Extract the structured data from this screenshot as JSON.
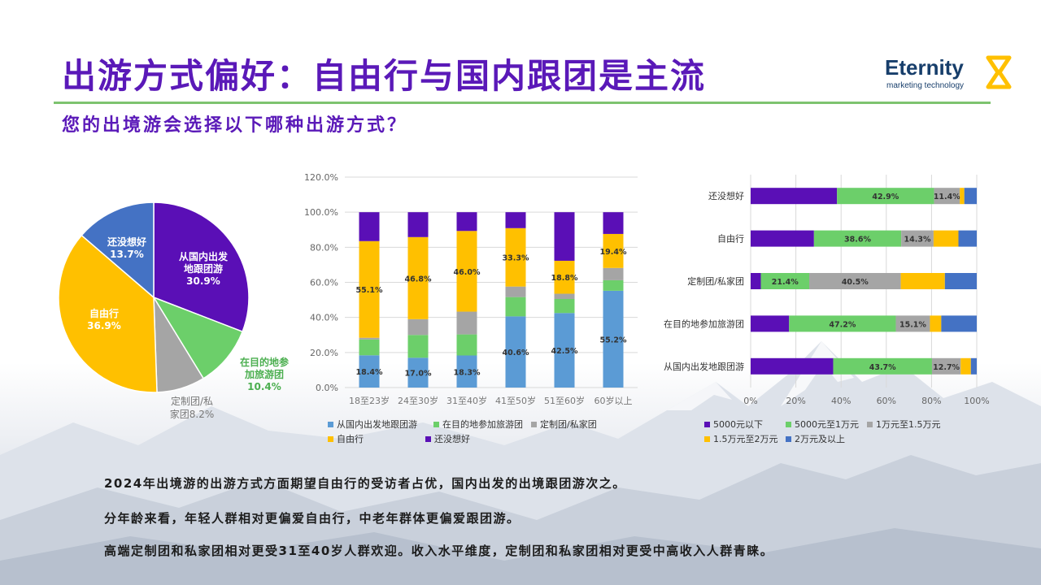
{
  "title": "出游方式偏好：自由行与国内跟团是主流",
  "subtitle": "您的出境游会选择以下哪种出游方式？",
  "logo": {
    "name": "Eternity",
    "tagline": "marketing technology"
  },
  "colors": {
    "blue": "#5b9bd5",
    "green": "#6ccf6a",
    "gray": "#a5a5a5",
    "yellow": "#ffc000",
    "purple": "#5a0fb6",
    "blue2": "#4472c4"
  },
  "chart_data": [
    {
      "type": "pie",
      "slices": [
        {
          "label": "从国内出发地跟团游",
          "value": 30.9,
          "value_label": "30.9%",
          "color": "#5a0fb6"
        },
        {
          "label": "在目的地参加旅游团",
          "value": 10.4,
          "value_label": "10.4%",
          "color": "#6ccf6a"
        },
        {
          "label": "定制团/私家团",
          "value": 8.2,
          "value_label": "8.2%",
          "color": "#a5a5a5"
        },
        {
          "label": "自由行",
          "value": 36.9,
          "value_label": "36.9%",
          "color": "#ffc000"
        },
        {
          "label": "还没想好",
          "value": 13.7,
          "value_label": "13.7%",
          "color": "#4472c4"
        }
      ]
    },
    {
      "type": "bar",
      "stacked": true,
      "categories": [
        "18至23岁",
        "24至30岁",
        "31至40岁",
        "41至50岁",
        "51至60岁",
        "60岁以上"
      ],
      "yticks": [
        "0.0%",
        "20.0%",
        "40.0%",
        "60.0%",
        "80.0%",
        "100.0%",
        "120.0%"
      ],
      "ylim": [
        0,
        120
      ],
      "grid": true,
      "legend_position": "bottom",
      "series": [
        {
          "name": "从国内出发地跟团游",
          "color": "#5b9bd5",
          "values": [
            18.4,
            17.0,
            18.3,
            40.6,
            42.5,
            55.2
          ],
          "labels": [
            "18.4%",
            "17.0%",
            "18.3%",
            "40.6%",
            "42.5%",
            "55.2%"
          ]
        },
        {
          "name": "在目的地参加旅游团",
          "color": "#6ccf6a",
          "values": [
            9.0,
            13.0,
            12.0,
            11.0,
            8.0,
            6.0
          ],
          "labels": [
            "",
            "",
            "",
            "",
            "",
            ""
          ]
        },
        {
          "name": "定制团/私家团",
          "color": "#a5a5a5",
          "values": [
            1.0,
            9.0,
            13.0,
            6.0,
            3.0,
            7.0
          ],
          "labels": [
            "",
            "",
            "",
            "",
            "",
            ""
          ]
        },
        {
          "name": "自由行",
          "color": "#ffc000",
          "values": [
            55.1,
            46.8,
            46.0,
            33.3,
            18.8,
            19.4
          ],
          "labels": [
            "55.1%",
            "46.8%",
            "46.0%",
            "33.3%",
            "18.8%",
            "19.4%"
          ]
        },
        {
          "name": "还没想好",
          "color": "#5a0fb6",
          "values": [
            16.5,
            14.2,
            10.7,
            9.1,
            27.7,
            12.4
          ],
          "labels": [
            "",
            "",
            "",
            "",
            "",
            ""
          ]
        }
      ]
    },
    {
      "type": "bar",
      "orientation": "horizontal",
      "stacked": true,
      "percent": true,
      "categories": [
        "还没想好",
        "自由行",
        "定制团/私家团",
        "在目的地参加旅游团",
        "从国内出发地跟团游"
      ],
      "xticks": [
        "0%",
        "20%",
        "40%",
        "60%",
        "80%",
        "100%"
      ],
      "xlim": [
        0,
        100
      ],
      "grid": true,
      "legend_position": "bottom",
      "series": [
        {
          "name": "5000元以下",
          "color": "#5a0fb6",
          "values": [
            38.2,
            28.0,
            4.5,
            17.0,
            36.5
          ],
          "labels": [
            "",
            "",
            "",
            "",
            ""
          ]
        },
        {
          "name": "5000元至1万元",
          "color": "#6ccf6a",
          "values": [
            42.9,
            38.6,
            21.4,
            47.2,
            43.7
          ],
          "labels": [
            "42.9%",
            "38.6%",
            "21.4%",
            "47.2%",
            "43.7%"
          ]
        },
        {
          "name": "1万元至1.5万元",
          "color": "#a5a5a5",
          "values": [
            11.4,
            14.3,
            40.5,
            15.1,
            12.7
          ],
          "labels": [
            "11.4%",
            "14.3%",
            "40.5%",
            "15.1%",
            "12.7%"
          ]
        },
        {
          "name": "1.5万元至2万元",
          "color": "#ffc000",
          "values": [
            2.0,
            11.0,
            19.5,
            5.0,
            4.5
          ],
          "labels": [
            "",
            "",
            "",
            "",
            ""
          ]
        },
        {
          "name": "2万元及以上",
          "color": "#4472c4",
          "values": [
            5.5,
            8.1,
            14.1,
            15.7,
            2.6
          ],
          "labels": [
            "",
            "",
            "",
            "",
            ""
          ]
        }
      ]
    }
  ],
  "body_text": [
    "2024年出境游的出游方式方面期望自由行的受访者占优，国内出发的出境跟团游次之。",
    "分年龄来看，年轻人群相对更偏爱自由行，中老年群体更偏爱跟团游。",
    "高端定制团和私家团相对更受31至40岁人群欢迎。收入水平维度，定制团和私家团相对更受中高收入人群青睐。"
  ]
}
